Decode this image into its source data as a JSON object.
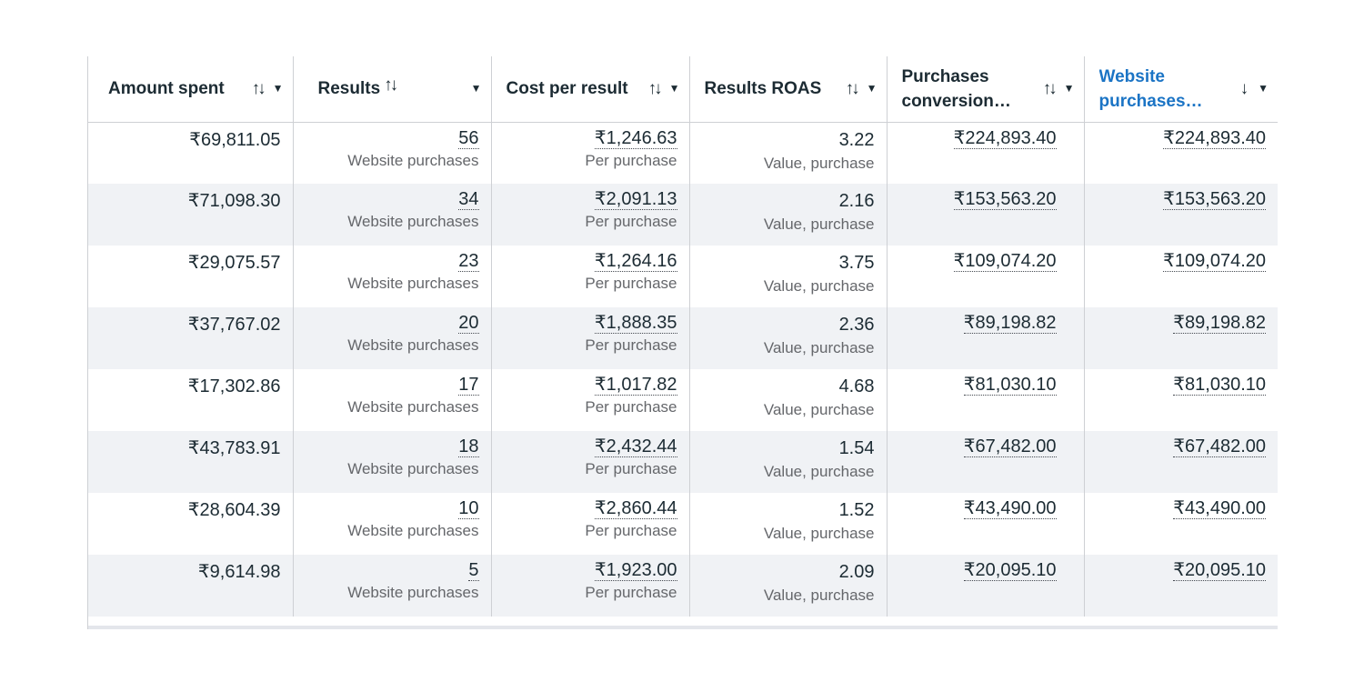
{
  "columns": [
    {
      "label": "Amount spent",
      "sort": "↑↓",
      "dropdown": "▼"
    },
    {
      "label": "Results",
      "sort": "↑↓",
      "dropdown": "▼"
    },
    {
      "label": "Cost per result",
      "sort": "↑↓",
      "dropdown": "▼"
    },
    {
      "label": "Results ROAS",
      "sort": "↑↓",
      "dropdown": "▼"
    },
    {
      "label": "Purchases conversion…",
      "sort": "↑↓",
      "dropdown": "▼"
    },
    {
      "label": "Website purchases…",
      "sort": "↓",
      "dropdown": "▼",
      "accent": "#1b74c5"
    }
  ],
  "rows": [
    {
      "amount": "₹69,811.05",
      "results": "56",
      "results_sub": "Website purchases",
      "cost": "₹1,246.63",
      "cost_sub": "Per purchase",
      "roas": "3.22",
      "roas_sub": "Value, purchase",
      "conv": "₹224,893.40",
      "website": "₹224,893.40"
    },
    {
      "amount": "₹71,098.30",
      "results": "34",
      "results_sub": "Website purchases",
      "cost": "₹2,091.13",
      "cost_sub": "Per purchase",
      "roas": "2.16",
      "roas_sub": "Value, purchase",
      "conv": "₹153,563.20",
      "website": "₹153,563.20"
    },
    {
      "amount": "₹29,075.57",
      "results": "23",
      "results_sub": "Website purchases",
      "cost": "₹1,264.16",
      "cost_sub": "Per purchase",
      "roas": "3.75",
      "roas_sub": "Value, purchase",
      "conv": "₹109,074.20",
      "website": "₹109,074.20"
    },
    {
      "amount": "₹37,767.02",
      "results": "20",
      "results_sub": "Website purchases",
      "cost": "₹1,888.35",
      "cost_sub": "Per purchase",
      "roas": "2.36",
      "roas_sub": "Value, purchase",
      "conv": "₹89,198.82",
      "website": "₹89,198.82"
    },
    {
      "amount": "₹17,302.86",
      "results": "17",
      "results_sub": "Website purchases",
      "cost": "₹1,017.82",
      "cost_sub": "Per purchase",
      "roas": "4.68",
      "roas_sub": "Value, purchase",
      "conv": "₹81,030.10",
      "website": "₹81,030.10"
    },
    {
      "amount": "₹43,783.91",
      "results": "18",
      "results_sub": "Website purchases",
      "cost": "₹2,432.44",
      "cost_sub": "Per purchase",
      "roas": "1.54",
      "roas_sub": "Value, purchase",
      "conv": "₹67,482.00",
      "website": "₹67,482.00"
    },
    {
      "amount": "₹28,604.39",
      "results": "10",
      "results_sub": "Website purchases",
      "cost": "₹2,860.44",
      "cost_sub": "Per purchase",
      "roas": "1.52",
      "roas_sub": "Value, purchase",
      "conv": "₹43,490.00",
      "website": "₹43,490.00"
    },
    {
      "amount": "₹9,614.98",
      "results": "5",
      "results_sub": "Website purchases",
      "cost": "₹1,923.00",
      "cost_sub": "Per purchase",
      "roas": "2.09",
      "roas_sub": "Value, purchase",
      "conv": "₹20,095.10",
      "website": "₹20,095.10"
    }
  ]
}
